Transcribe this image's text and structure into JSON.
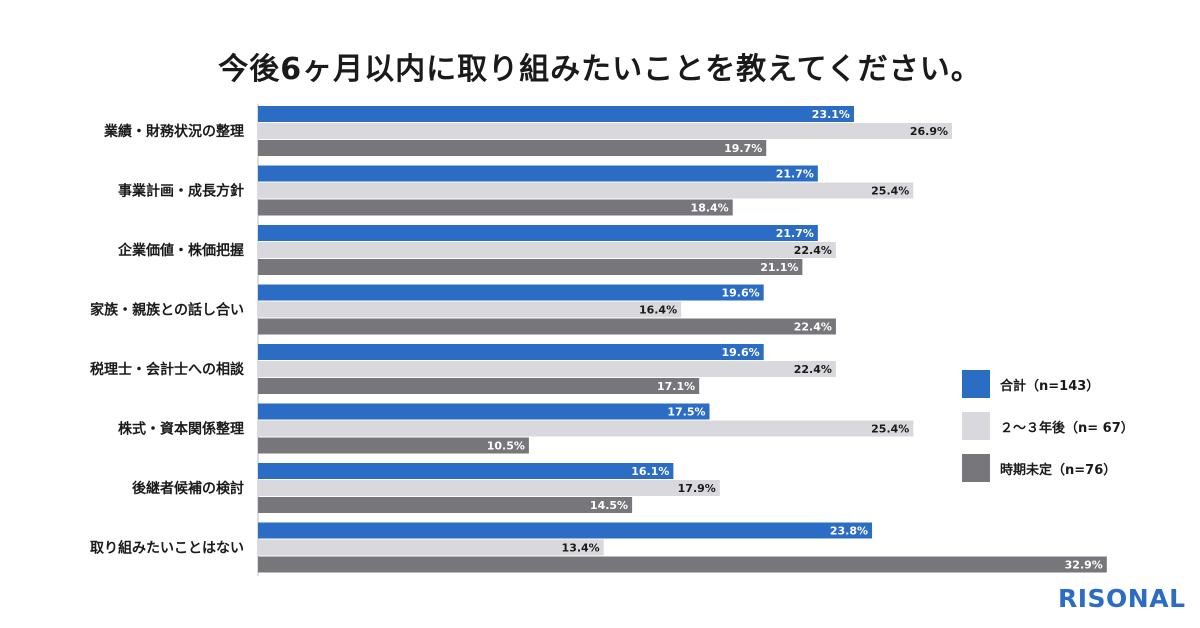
{
  "chart_data": {
    "type": "bar",
    "orientation": "horizontal",
    "title": "今後6ヶ月以内に取り組みたいことを教えてください。",
    "categories": [
      "業績・財務状況の整理",
      "事業計画・成長方針",
      "企業価値・株価把握",
      "家族・親族との話し合い",
      "税理士・会計士への相談",
      "株式・資本関係整理",
      "後継者候補の検討",
      "取り組みたいことはない"
    ],
    "series": [
      {
        "name": "合計（n=143）",
        "color": "#2b6cc4",
        "label_color": "#ffffff",
        "values": [
          23.1,
          21.7,
          21.7,
          19.6,
          19.6,
          17.5,
          16.1,
          23.8
        ]
      },
      {
        "name": "２～３年後（n= 67）",
        "color": "#d9d9dd",
        "label_color": "#1a1a1a",
        "values": [
          26.9,
          25.4,
          22.4,
          16.4,
          22.4,
          25.4,
          17.9,
          13.4
        ]
      },
      {
        "name": "時期未定（n=76）",
        "color": "#77767b",
        "label_color": "#ffffff",
        "values": [
          19.7,
          18.4,
          21.1,
          22.4,
          17.1,
          10.5,
          14.5,
          32.9
        ]
      }
    ],
    "value_suffix": "%",
    "xlim": [
      0,
      33
    ],
    "grid": false,
    "legend_position": "right"
  },
  "brand": "RISONAL"
}
